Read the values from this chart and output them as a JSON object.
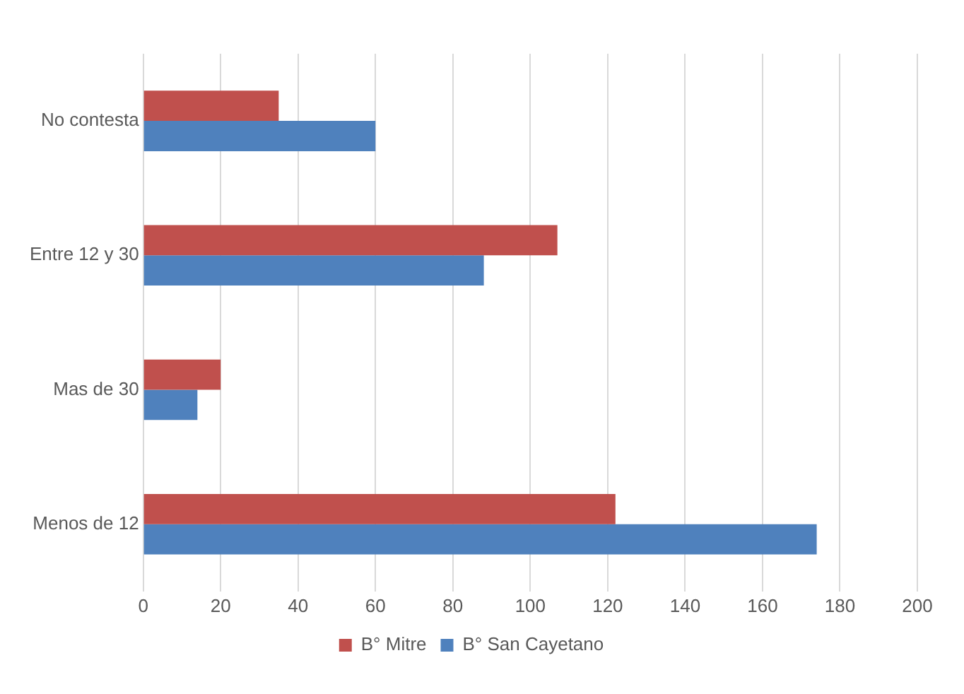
{
  "chart_data": {
    "type": "bar",
    "orientation": "horizontal",
    "categories": [
      "No contesta",
      "Entre 12 y 30",
      "Mas de 30",
      "Menos de 12"
    ],
    "series": [
      {
        "name": "B° Mitre",
        "color": "#c0504d",
        "values": [
          35,
          107,
          20,
          122
        ]
      },
      {
        "name": "B° San Cayetano",
        "color": "#4f81bd",
        "values": [
          60,
          88,
          14,
          174
        ]
      }
    ],
    "xlim": [
      0,
      200
    ],
    "xticks": [
      0,
      20,
      40,
      60,
      80,
      100,
      120,
      140,
      160,
      180,
      200
    ],
    "grid": "x",
    "legend": "bottom"
  }
}
